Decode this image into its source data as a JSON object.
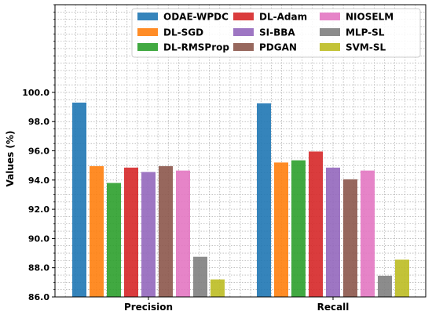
{
  "chart_data": {
    "type": "bar",
    "categories": [
      "Precision",
      "Recall"
    ],
    "ylabel": "Values (%)",
    "xlabel": "",
    "ylim": [
      86.0,
      106.0
    ],
    "yticks": [
      86.0,
      88.0,
      90.0,
      92.0,
      94.0,
      96.0,
      98.0,
      100.0
    ],
    "ytick_labels": [
      "86.0",
      "88.0",
      "90.0",
      "92.0",
      "94.0",
      "96.0",
      "98.0",
      "100.0"
    ],
    "grid": true,
    "legend_position": "top-right",
    "legend_columns": 3,
    "series": [
      {
        "name": "ODAE-WPDC",
        "color": "#1f77b4",
        "values": [
          99.3,
          99.25
        ]
      },
      {
        "name": "DL-SGD",
        "color": "#ff7f0e",
        "values": [
          94.95,
          95.2
        ]
      },
      {
        "name": "DL-RMSProp",
        "color": "#2ca02c",
        "values": [
          93.8,
          95.35
        ]
      },
      {
        "name": "DL-Adam",
        "color": "#d62728",
        "values": [
          94.85,
          95.95
        ]
      },
      {
        "name": "SI-BBA",
        "color": "#9467bd",
        "values": [
          94.55,
          94.85
        ]
      },
      {
        "name": "PDGAN",
        "color": "#8c564b",
        "values": [
          94.95,
          94.05
        ]
      },
      {
        "name": "NIOSELM",
        "color": "#e377c2",
        "values": [
          94.65,
          94.65
        ]
      },
      {
        "name": "MLP-SL",
        "color": "#7f7f7f",
        "values": [
          88.75,
          87.45
        ]
      },
      {
        "name": "SVM-SL",
        "color": "#bcbd22",
        "values": [
          87.2,
          88.55
        ]
      }
    ]
  }
}
